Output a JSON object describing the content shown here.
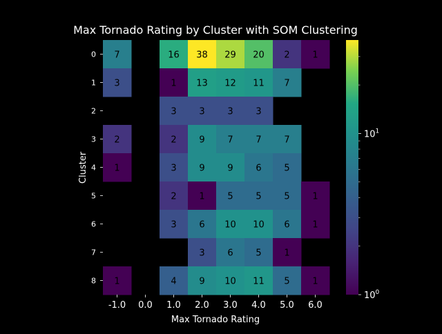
{
  "chart_data": {
    "type": "heatmap",
    "title": "Max Tornado Rating by Cluster with SOM Clustering",
    "xlabel": "Max Tornado Rating",
    "ylabel": "Cluster",
    "x_categories": [
      "-1.0",
      "0.0",
      "1.0",
      "2.0",
      "3.0",
      "4.0",
      "5.0",
      "6.0"
    ],
    "y_categories": [
      "0",
      "1",
      "2",
      "3",
      "4",
      "5",
      "6",
      "7",
      "8"
    ],
    "values": [
      [
        7,
        null,
        16,
        38,
        29,
        20,
        2,
        1
      ],
      [
        3,
        null,
        1,
        13,
        12,
        11,
        7,
        null
      ],
      [
        null,
        null,
        3,
        3,
        3,
        3,
        null,
        null
      ],
      [
        2,
        null,
        2,
        9,
        7,
        7,
        7,
        null
      ],
      [
        1,
        null,
        3,
        9,
        9,
        6,
        5,
        null
      ],
      [
        null,
        null,
        2,
        1,
        5,
        5,
        5,
        1
      ],
      [
        null,
        null,
        3,
        6,
        10,
        10,
        6,
        1
      ],
      [
        null,
        null,
        null,
        3,
        6,
        5,
        1,
        null
      ],
      [
        1,
        null,
        4,
        9,
        10,
        11,
        5,
        1
      ]
    ],
    "colormap": "viridis",
    "color_scale": "log",
    "color_range": [
      1,
      38
    ],
    "colorbar_ticks": [
      {
        "value": 1,
        "base": "10",
        "exp": "0"
      },
      {
        "value": 10,
        "base": "10",
        "exp": "1"
      }
    ],
    "background": "#000000",
    "text_color": "#ffffff",
    "annotation_color": "#000000"
  }
}
